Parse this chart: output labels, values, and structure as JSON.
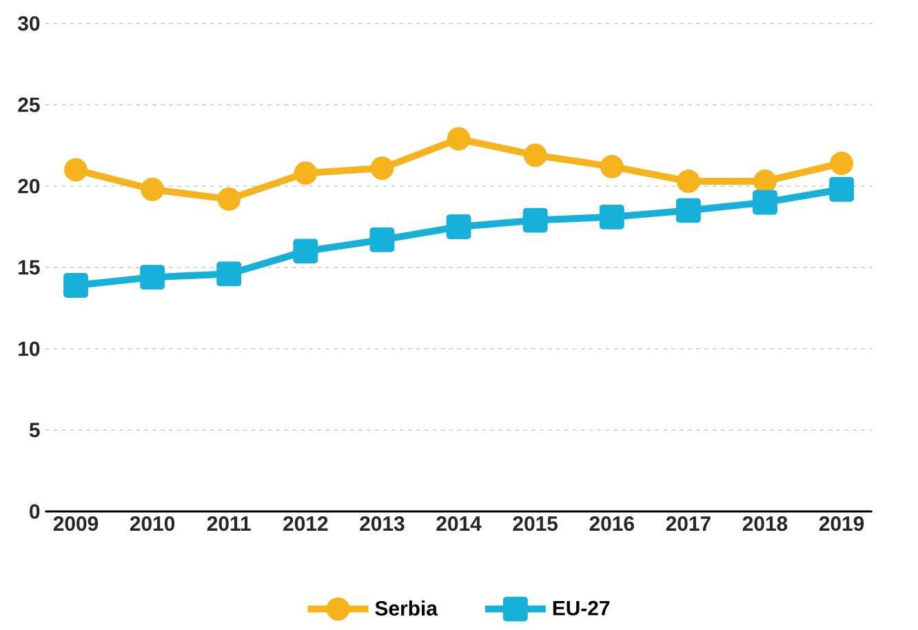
{
  "chart_data": {
    "type": "line",
    "categories": [
      "2009",
      "2010",
      "2011",
      "2012",
      "2013",
      "2014",
      "2015",
      "2016",
      "2017",
      "2018",
      "2019"
    ],
    "series": [
      {
        "name": "Serbia",
        "color": "#f5b41e",
        "marker": "circle",
        "values": [
          21.0,
          19.8,
          19.2,
          20.8,
          21.1,
          22.9,
          21.9,
          21.2,
          20.3,
          20.3,
          21.4
        ]
      },
      {
        "name": "EU-27",
        "color": "#16b0d9",
        "marker": "square",
        "values": [
          13.9,
          14.4,
          14.6,
          16.0,
          16.7,
          17.5,
          17.9,
          18.1,
          18.5,
          19.0,
          19.8
        ]
      }
    ],
    "ylim": [
      0,
      30
    ],
    "yticks": [
      0,
      5,
      10,
      15,
      20,
      25,
      30
    ],
    "grid": "y",
    "legend": "bottom",
    "line_style": "solid"
  }
}
